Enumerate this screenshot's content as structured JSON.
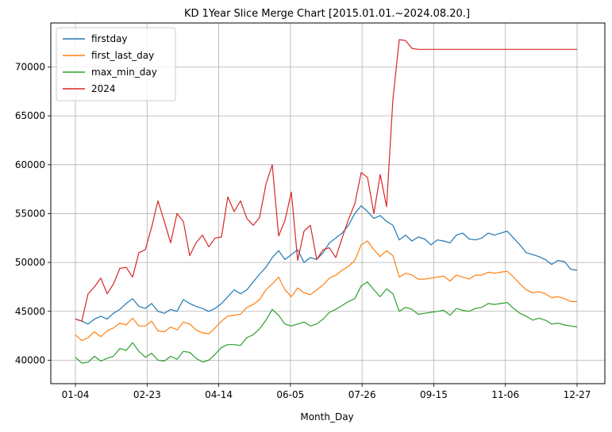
{
  "chart_data": {
    "type": "line",
    "title": "KD 1Year Slice Merge Chart [2015.01.01.~2024.08.20.]",
    "xlabel": "Month_Day",
    "ylabel": "",
    "x_ticks": [
      "01-04",
      "02-23",
      "04-14",
      "06-05",
      "07-26",
      "09-15",
      "11-06",
      "12-27"
    ],
    "ylim": [
      37600,
      74500
    ],
    "yticks": [
      40000,
      45000,
      50000,
      55000,
      60000,
      65000,
      70000
    ],
    "grid": true,
    "legend_position": "upper-left",
    "series": [
      {
        "name": "firstday",
        "color": "#1f77b4",
        "values": [
          44200,
          44000,
          43700,
          44200,
          44500,
          44200,
          44800,
          45200,
          45800,
          46300,
          45500,
          45300,
          45800,
          45000,
          44800,
          45200,
          45000,
          46200,
          45800,
          45500,
          45300,
          45000,
          45300,
          45800,
          46500,
          47200,
          46800,
          47200,
          48000,
          48800,
          49500,
          50500,
          51200,
          50300,
          50800,
          51300,
          50000,
          50500,
          50300,
          51000,
          52000,
          52500,
          53000,
          53800,
          55000,
          55800,
          55200,
          54500,
          54800,
          54200,
          53800,
          52300,
          52800,
          52200,
          52600,
          52400,
          51800,
          52300,
          52200,
          52000,
          52800,
          53000,
          52400,
          52300,
          52500,
          53000,
          52800,
          53000,
          53200,
          52500,
          51800,
          51000,
          50800,
          50600,
          50300,
          49800,
          50200,
          50100,
          49300,
          49200
        ]
      },
      {
        "name": "first_last_day",
        "color": "#ff7f0e",
        "values": [
          42600,
          42000,
          42300,
          42900,
          42400,
          43000,
          43300,
          43800,
          43600,
          44300,
          43500,
          43500,
          44000,
          43000,
          42900,
          43400,
          43100,
          43900,
          43700,
          43100,
          42800,
          42700,
          43300,
          44000,
          44500,
          44600,
          44700,
          45400,
          45700,
          46200,
          47200,
          47800,
          48500,
          47200,
          46500,
          47400,
          46900,
          46700,
          47200,
          47700,
          48400,
          48700,
          49200,
          49600,
          50200,
          51800,
          52200,
          51300,
          50600,
          51200,
          50700,
          48500,
          48900,
          48700,
          48300,
          48300,
          48400,
          48500,
          48600,
          48100,
          48700,
          48500,
          48300,
          48700,
          48700,
          49000,
          48900,
          49000,
          49100,
          48500,
          47800,
          47200,
          46900,
          47000,
          46800,
          46400,
          46500,
          46300,
          46000,
          46000
        ]
      },
      {
        "name": "max_min_day",
        "color": "#2ca02c",
        "values": [
          40300,
          39700,
          39800,
          40400,
          39900,
          40200,
          40400,
          41200,
          41000,
          41800,
          40900,
          40300,
          40700,
          40000,
          39900,
          40400,
          40100,
          40900,
          40800,
          40200,
          39800,
          40000,
          40600,
          41300,
          41600,
          41600,
          41500,
          42300,
          42600,
          43200,
          44100,
          45200,
          44600,
          43700,
          43500,
          43700,
          43900,
          43500,
          43700,
          44200,
          44900,
          45200,
          45600,
          46000,
          46300,
          47600,
          48000,
          47200,
          46500,
          47300,
          46800,
          45000,
          45400,
          45200,
          44700,
          44800,
          44900,
          45000,
          45100,
          44600,
          45300,
          45100,
          45000,
          45300,
          45400,
          45800,
          45700,
          45800,
          45900,
          45300,
          44800,
          44500,
          44100,
          44300,
          44100,
          43700,
          43800,
          43600,
          43500,
          43400
        ]
      },
      {
        "name": "2024",
        "color": "#d62728",
        "values": [
          44200,
          44000,
          46800,
          47500,
          48400,
          46800,
          47800,
          49400,
          49500,
          48500,
          51000,
          51300,
          53600,
          56300,
          54200,
          52000,
          55000,
          54200,
          50700,
          52000,
          52800,
          51600,
          52500,
          52600,
          56700,
          55200,
          56300,
          54500,
          53800,
          54600,
          58000,
          60000,
          52700,
          54300,
          57200,
          50200,
          53200,
          53800,
          50300,
          51300,
          51500,
          50500,
          52500,
          54400,
          56000,
          59200,
          58700,
          55000,
          59000,
          55700,
          66700,
          72800,
          72700,
          71900,
          71800,
          71800,
          71800,
          71800,
          71800,
          71800,
          71800,
          71800,
          71800,
          71800,
          71800,
          71800,
          71800,
          71800,
          71800,
          71800,
          71800,
          71800,
          71800,
          71800,
          71800,
          71800,
          71800,
          71800,
          71800,
          71800
        ]
      }
    ]
  }
}
